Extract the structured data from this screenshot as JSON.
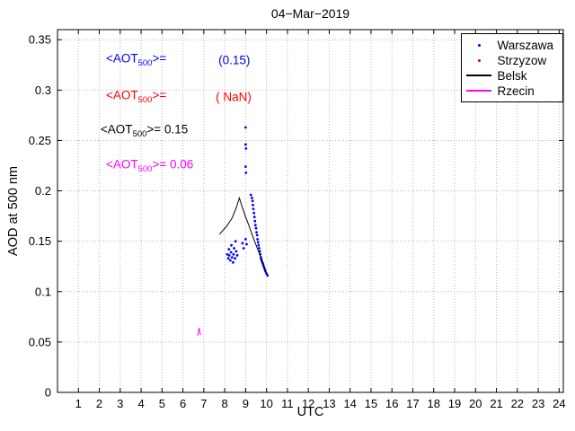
{
  "chart_data": {
    "type": "scatter",
    "title": "04−Mar−2019",
    "xlabel": "UTC",
    "ylabel": "AOD at 500 nm",
    "xlim": [
      0,
      24.2
    ],
    "ylim": [
      0,
      0.36
    ],
    "grid": true,
    "xticks": [
      1,
      2,
      3,
      4,
      5,
      6,
      7,
      8,
      9,
      10,
      11,
      12,
      13,
      14,
      15,
      16,
      17,
      18,
      19,
      20,
      21,
      22,
      23,
      24
    ],
    "ytick_values": [
      0,
      0.05,
      0.1,
      0.15,
      0.2,
      0.25,
      0.3,
      0.35
    ],
    "ytick_labels": [
      "0",
      "0.05",
      "0.1",
      "0.15",
      "0.2",
      "0.25",
      "0.3",
      "0.35"
    ],
    "legend": {
      "position": "top-right",
      "entries": [
        {
          "label": "Warszawa",
          "color": "#0000ff",
          "marker": "dot"
        },
        {
          "label": "Strzyzow",
          "color": "#cc0000",
          "marker": "dot"
        },
        {
          "label": "Belsk",
          "color": "#000000",
          "marker": "line"
        },
        {
          "label": "Rzecin",
          "color": "#ff00ff",
          "marker": "line"
        }
      ]
    },
    "annotations": [
      {
        "text": "<AOT{500}>=",
        "x": 2.32,
        "y": 0.33,
        "color": "#0000ff"
      },
      {
        "text": "(0.15)",
        "x": 7.7,
        "y": 0.33,
        "color": "#0000ff"
      },
      {
        "text": "<AOT{500}>=",
        "x": 2.32,
        "y": 0.293,
        "color": "#ff0000"
      },
      {
        "text": "( NaN)",
        "x": 7.57,
        "y": 0.293,
        "color": "#ff0000"
      },
      {
        "text": "<AOT{500}>= 0.15",
        "x": 2.06,
        "y": 0.259,
        "color": "#000000"
      },
      {
        "text": "<AOT{500}>= 0.06",
        "x": 2.32,
        "y": 0.225,
        "color": "#ff00ff"
      }
    ],
    "series": [
      {
        "name": "Warszawa",
        "type": "scatter",
        "color": "#0000ff",
        "points": [
          [
            8.12,
            0.137
          ],
          [
            8.17,
            0.133
          ],
          [
            8.2,
            0.142
          ],
          [
            8.22,
            0.136
          ],
          [
            8.27,
            0.131
          ],
          [
            8.3,
            0.139
          ],
          [
            8.32,
            0.146
          ],
          [
            8.35,
            0.134
          ],
          [
            8.4,
            0.129
          ],
          [
            8.42,
            0.137
          ],
          [
            8.45,
            0.143
          ],
          [
            8.5,
            0.133
          ],
          [
            8.52,
            0.15
          ],
          [
            8.55,
            0.14
          ],
          [
            8.6,
            0.136
          ],
          [
            8.85,
            0.148
          ],
          [
            8.9,
            0.143
          ],
          [
            9.0,
            0.152
          ],
          [
            9.05,
            0.147
          ],
          [
            9.0,
            0.263
          ],
          [
            9.0,
            0.246
          ],
          [
            9.02,
            0.242
          ],
          [
            9.0,
            0.224
          ],
          [
            9.02,
            0.218
          ],
          [
            9.25,
            0.196
          ],
          [
            9.3,
            0.193
          ],
          [
            9.33,
            0.19
          ],
          [
            9.35,
            0.186
          ],
          [
            9.37,
            0.182
          ],
          [
            9.4,
            0.178
          ],
          [
            9.42,
            0.174
          ],
          [
            9.45,
            0.17
          ],
          [
            9.47,
            0.166
          ],
          [
            9.5,
            0.163
          ],
          [
            9.52,
            0.159
          ],
          [
            9.55,
            0.156
          ],
          [
            9.57,
            0.152
          ],
          [
            9.6,
            0.149
          ],
          [
            9.62,
            0.146
          ],
          [
            9.65,
            0.143
          ],
          [
            9.68,
            0.14
          ],
          [
            9.7,
            0.137
          ],
          [
            9.73,
            0.134
          ],
          [
            9.75,
            0.132
          ],
          [
            9.78,
            0.13
          ],
          [
            9.82,
            0.128
          ],
          [
            9.85,
            0.126
          ],
          [
            9.88,
            0.124
          ],
          [
            9.92,
            0.122
          ],
          [
            9.95,
            0.12
          ],
          [
            10.0,
            0.118
          ],
          [
            10.05,
            0.116
          ]
        ]
      },
      {
        "name": "Strzyzow",
        "type": "scatter",
        "color": "#cc0000",
        "points": []
      },
      {
        "name": "Belsk",
        "type": "line",
        "color": "#000000",
        "points": [
          [
            7.75,
            0.157
          ],
          [
            8.1,
            0.165
          ],
          [
            8.35,
            0.173
          ],
          [
            8.55,
            0.183
          ],
          [
            8.7,
            0.193
          ],
          [
            8.85,
            0.183
          ],
          [
            9.0,
            0.174
          ],
          [
            9.15,
            0.166
          ],
          [
            9.3,
            0.157
          ],
          [
            9.45,
            0.149
          ],
          [
            9.6,
            0.141
          ],
          [
            9.75,
            0.133
          ],
          [
            9.9,
            0.124
          ],
          [
            10.0,
            0.117
          ]
        ]
      },
      {
        "name": "Rzecin",
        "type": "line",
        "color": "#ff00ff",
        "points": [
          [
            6.7,
            0.056
          ],
          [
            6.78,
            0.064
          ],
          [
            6.84,
            0.057
          ]
        ]
      }
    ]
  }
}
